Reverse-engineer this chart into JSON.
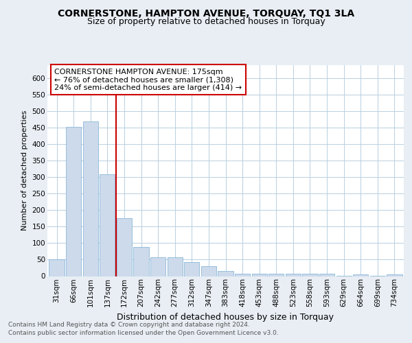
{
  "title1": "CORNERSTONE, HAMPTON AVENUE, TORQUAY, TQ1 3LA",
  "title2": "Size of property relative to detached houses in Torquay",
  "xlabel": "Distribution of detached houses by size in Torquay",
  "ylabel": "Number of detached properties",
  "categories": [
    "31sqm",
    "66sqm",
    "101sqm",
    "137sqm",
    "172sqm",
    "207sqm",
    "242sqm",
    "277sqm",
    "312sqm",
    "347sqm",
    "383sqm",
    "418sqm",
    "453sqm",
    "488sqm",
    "523sqm",
    "558sqm",
    "593sqm",
    "629sqm",
    "664sqm",
    "699sqm",
    "734sqm"
  ],
  "values": [
    52,
    452,
    470,
    310,
    175,
    88,
    58,
    58,
    42,
    31,
    16,
    8,
    8,
    8,
    8,
    8,
    8,
    1,
    5,
    1,
    5
  ],
  "bar_color": "#ccdaeb",
  "bar_edge_color": "#7aaed4",
  "grid_color": "#b8cfe0",
  "vline_color": "#cc0000",
  "vline_x_idx": 3.5,
  "annotation_line1": "CORNERSTONE HAMPTON AVENUE: 175sqm",
  "annotation_line2": "← 76% of detached houses are smaller (1,308)",
  "annotation_line3": "24% of semi-detached houses are larger (414) →",
  "annotation_box_color": "#ffffff",
  "annotation_box_edge": "#cc0000",
  "footer1": "Contains HM Land Registry data © Crown copyright and database right 2024.",
  "footer2": "Contains public sector information licensed under the Open Government Licence v3.0.",
  "ylim": [
    0,
    640
  ],
  "yticks": [
    0,
    50,
    100,
    150,
    200,
    250,
    300,
    350,
    400,
    450,
    500,
    550,
    600
  ],
  "bg_color": "#e8eef4",
  "plot_bg_color": "#ffffff",
  "title1_fontsize": 10,
  "title2_fontsize": 9,
  "xlabel_fontsize": 9,
  "ylabel_fontsize": 8,
  "tick_fontsize": 7.5,
  "footer_fontsize": 6.5,
  "annot_fontsize": 8
}
